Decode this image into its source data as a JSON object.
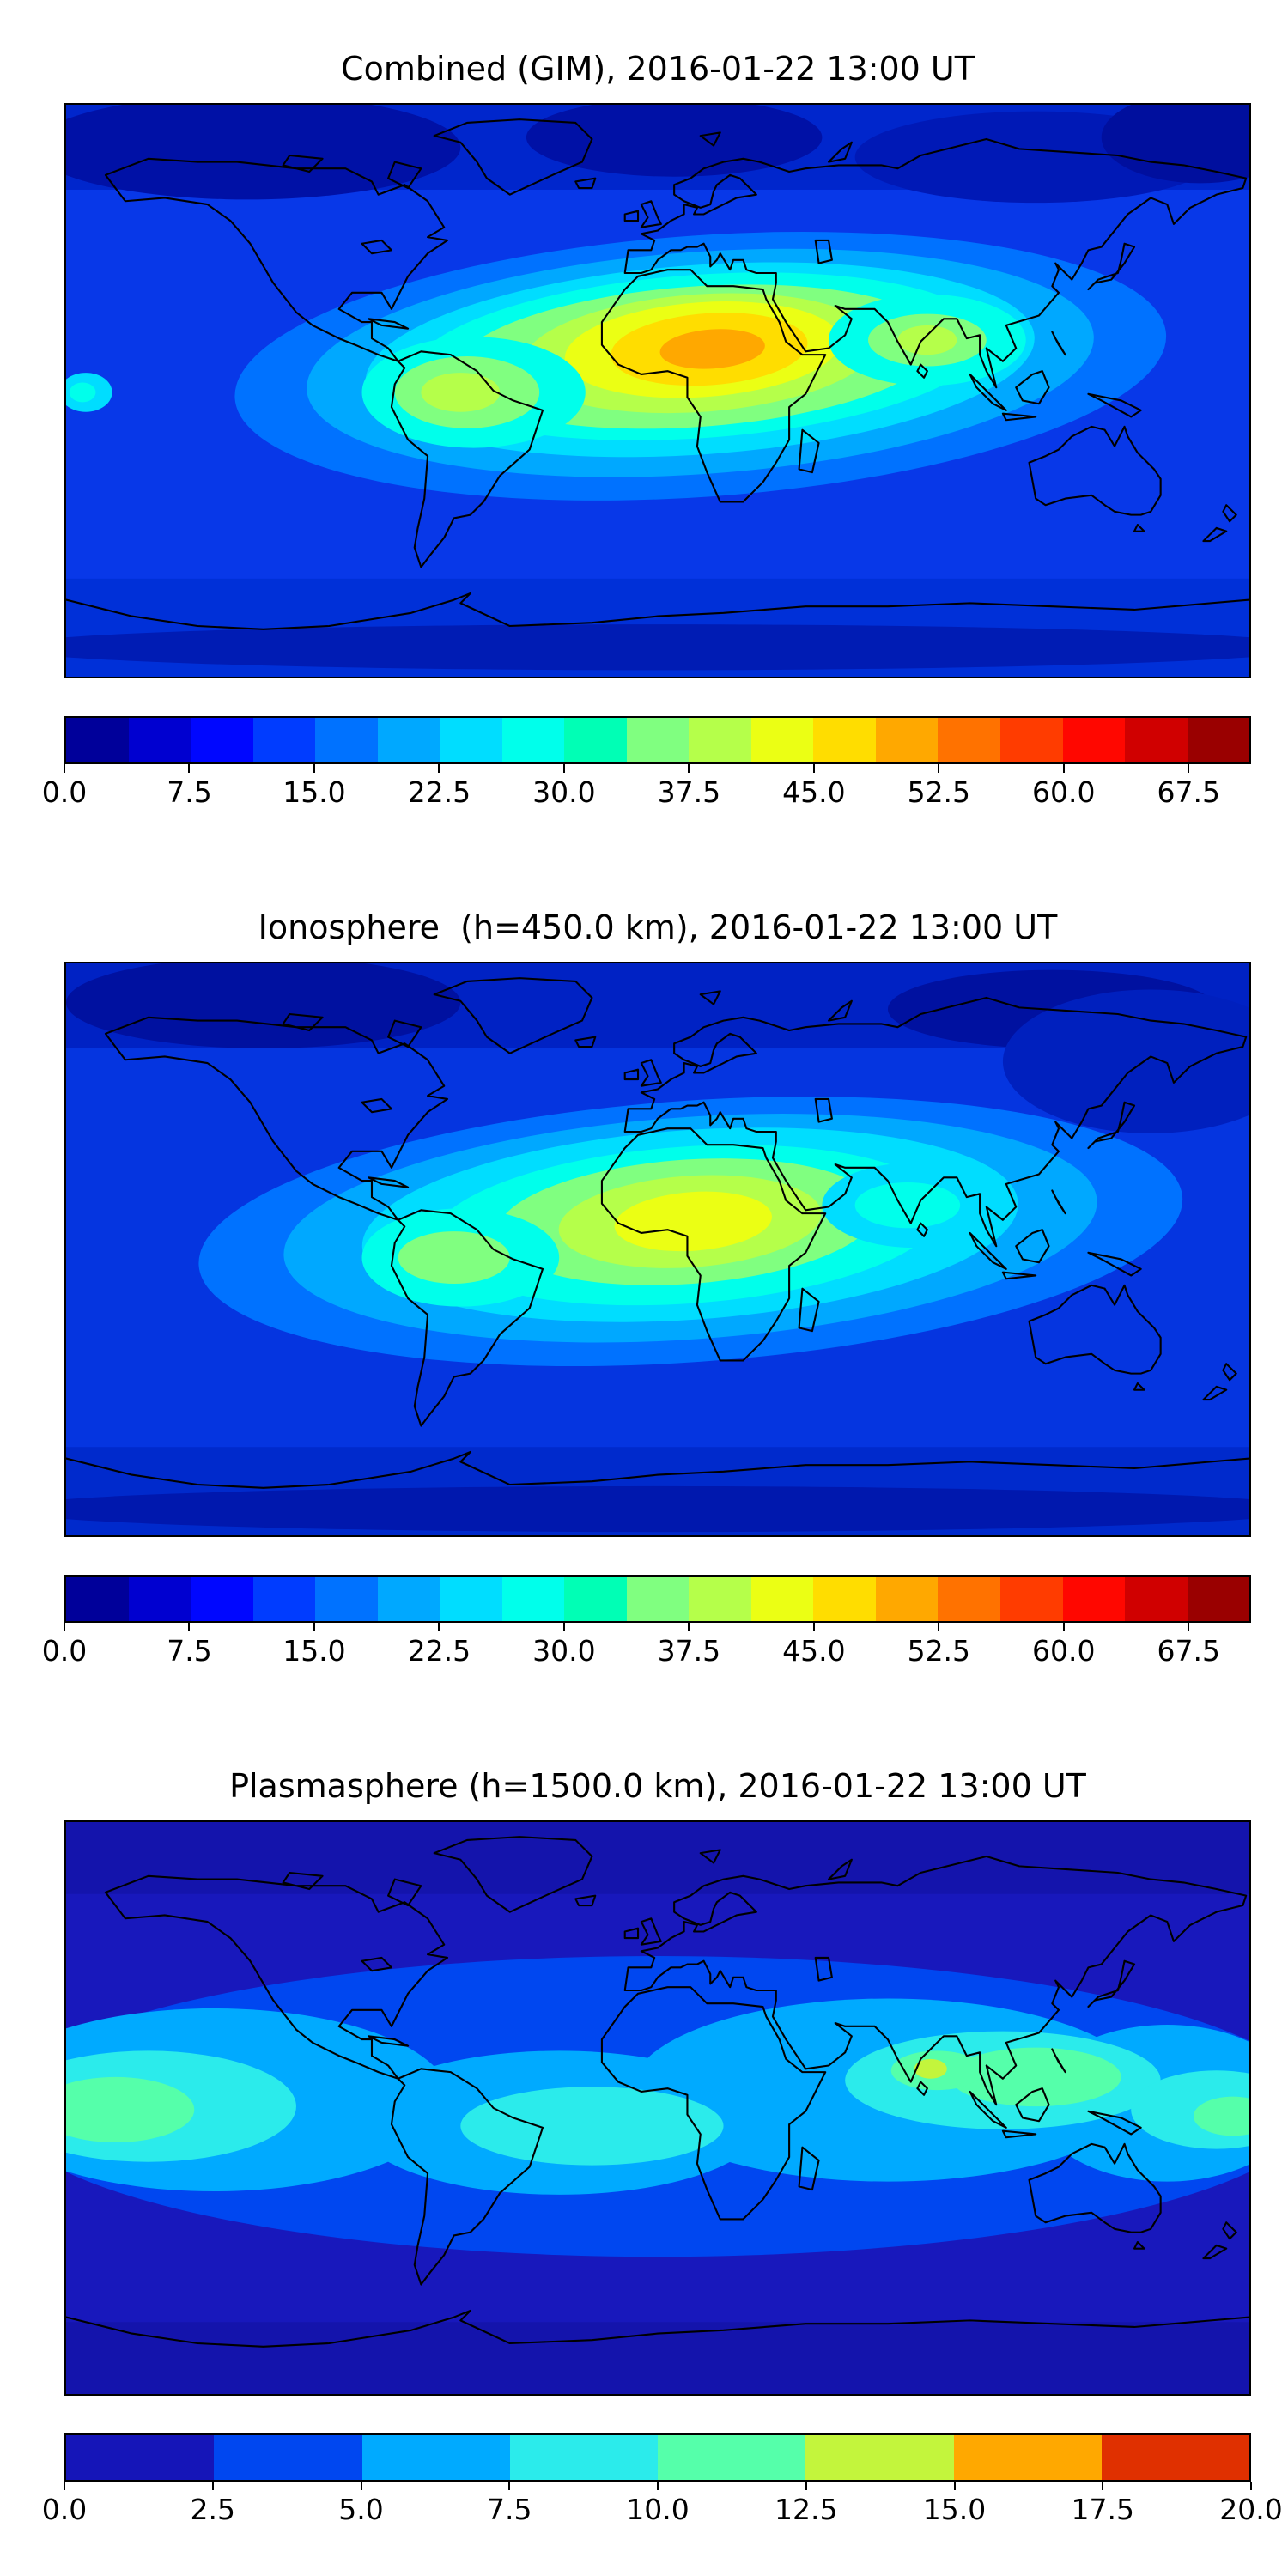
{
  "panels": [
    {
      "id": "combined",
      "title": "Combined (GIM), 2016-01-22 13:00 UT",
      "colorbar": {
        "range": [
          0,
          71.25
        ],
        "segment_colors": [
          "#00009A",
          "#0000D0",
          "#0007FF",
          "#003CFF",
          "#0072FF",
          "#00A8FF",
          "#00DDFF",
          "#00FFEB",
          "#00FFB5",
          "#80FF80",
          "#B5FF4A",
          "#EBFF14",
          "#FFDD00",
          "#FFA800",
          "#FF7200",
          "#FF3C00",
          "#FF0700",
          "#D00000",
          "#9A0000"
        ],
        "tick_values": [
          0,
          7.5,
          15,
          22.5,
          30,
          37.5,
          45,
          52.5,
          60,
          67.5
        ],
        "tick_labels": [
          "0.0",
          "7.5",
          "15.0",
          "22.5",
          "30.0",
          "37.5",
          "45.0",
          "52.5",
          "60.0",
          "67.5"
        ]
      }
    },
    {
      "id": "ionosphere",
      "title": "Ionosphere  (h=450.0 km), 2016-01-22 13:00 UT",
      "colorbar": {
        "range": [
          0,
          71.25
        ],
        "segment_colors": [
          "#00009A",
          "#0000D0",
          "#0007FF",
          "#003CFF",
          "#0072FF",
          "#00A8FF",
          "#00DDFF",
          "#00FFEB",
          "#00FFB5",
          "#80FF80",
          "#B5FF4A",
          "#EBFF14",
          "#FFDD00",
          "#FFA800",
          "#FF7200",
          "#FF3C00",
          "#FF0700",
          "#D00000",
          "#9A0000"
        ],
        "tick_values": [
          0,
          7.5,
          15,
          22.5,
          30,
          37.5,
          45,
          52.5,
          60,
          67.5
        ],
        "tick_labels": [
          "0.0",
          "7.5",
          "15.0",
          "22.5",
          "30.0",
          "37.5",
          "45.0",
          "52.5",
          "60.0",
          "67.5"
        ]
      }
    },
    {
      "id": "plasmasphere",
      "title": "Plasmasphere (h=1500.0 km), 2016-01-22 13:00 UT",
      "colorbar": {
        "range": [
          0,
          20
        ],
        "segment_colors": [
          "#1515B8",
          "#0047F0",
          "#00AAFF",
          "#2BEBEB",
          "#55FFAA",
          "#C3F53C",
          "#FFA800",
          "#E03000"
        ],
        "tick_values": [
          0,
          2.5,
          5,
          7.5,
          10,
          12.5,
          15,
          17.5,
          20
        ],
        "tick_labels": [
          "0.0",
          "2.5",
          "5.0",
          "7.5",
          "10.0",
          "12.5",
          "15.0",
          "17.5",
          "20.0"
        ]
      }
    }
  ],
  "chart_data": [
    {
      "type": "heatmap",
      "title": "Combined (GIM), 2016-01-22 13:00 UT",
      "projection": "equirectangular world map, lon -180..180, lat -90..90, coastlines overlaid",
      "colormap": "jet",
      "value_range": [
        0,
        71.25
      ],
      "contour_interval": 3.75,
      "colorbar_ticks": [
        0.0,
        7.5,
        15.0,
        22.5,
        30.0,
        37.5,
        45.0,
        52.5,
        60.0,
        67.5
      ],
      "legend_position": "horizontal colorbar below map",
      "peak": {
        "value_estimate": 55,
        "lon": 15,
        "lat": 10
      },
      "description": "Broad dayside enhancement spanning northern South America, Africa and India; orange core (~52-56) over central/western Africa, yellow band (~41-49) from Brazil to Arabia, green (~30-37) reaching India; values below ~11 at high latitudes and over the night-side Pacific."
    },
    {
      "type": "heatmap",
      "title": "Ionosphere  (h=450.0 km), 2016-01-22 13:00 UT",
      "projection": "equirectangular world map, lon -180..180, lat -90..90, coastlines overlaid",
      "colormap": "jet",
      "value_range": [
        0,
        71.25
      ],
      "contour_interval": 3.75,
      "colorbar_ticks": [
        0.0,
        7.5,
        15.0,
        22.5,
        30.0,
        37.5,
        45.0,
        52.5,
        60.0,
        67.5
      ],
      "legend_position": "horizontal colorbar below map",
      "peak": {
        "value_estimate": 45,
        "lon": 10,
        "lat": 5
      },
      "description": "Same pattern as combined map but weaker: yellow-green maximum (~41-45) over central Africa, green lobes over northern South America and India, dark blue (<11) at polar latitudes and night-side Pacific, darkest over northeast Asia."
    },
    {
      "type": "heatmap",
      "title": "Plasmasphere (h=1500.0 km), 2016-01-22 13:00 UT",
      "projection": "equirectangular world map, lon -180..180, lat -90..90, coastlines overlaid",
      "colormap": "jet",
      "value_range": [
        0,
        20
      ],
      "contour_interval": 2.5,
      "colorbar_ticks": [
        0.0,
        2.5,
        5.0,
        7.5,
        10.0,
        12.5,
        15.0,
        17.5,
        20.0
      ],
      "legend_position": "horizontal colorbar below map",
      "peak": {
        "value_estimate": 13,
        "lon": 82,
        "lat": 12
      },
      "description": "Equatorial band (~5-10) spanning all longitudes between about ±35 latitude; aqua-green patches (~10-12.5) over the western Pacific left edge and over India/Southeast Asia with a small yellow-green spot (~12.5-15) near India; below ~5 poleward of ±40."
    }
  ]
}
